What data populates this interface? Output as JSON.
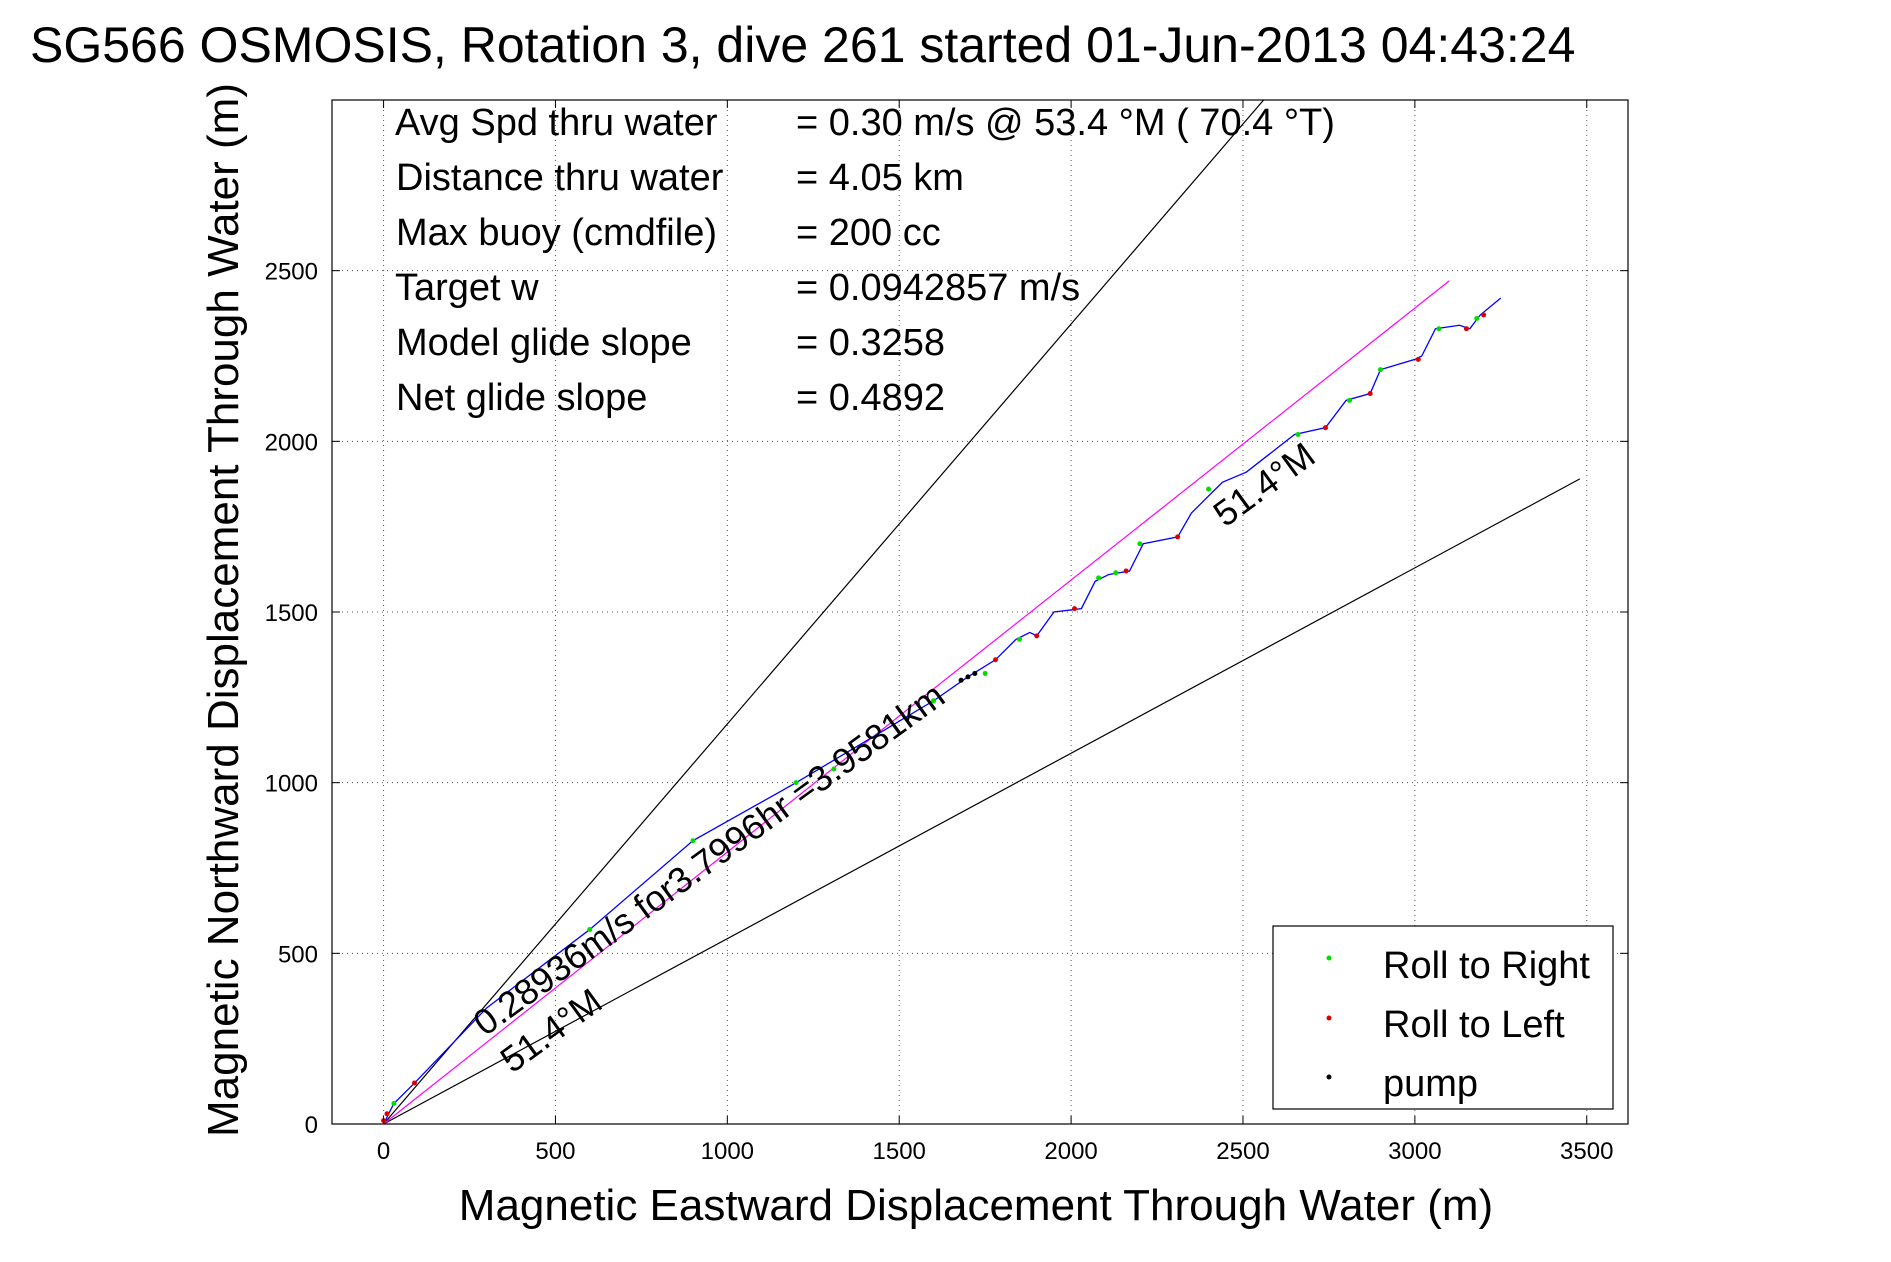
{
  "figure": {
    "title": "SG566 OSMOSIS, Rotation 3, dive 261 started 01-Jun-2013 04:43:24",
    "xlabel": "Magnetic Eastward Displacement Through Water (m)",
    "ylabel": "Magnetic Northward Displacement Through Water (m)"
  },
  "stats": [
    {
      "label": "Avg Spd thru water",
      "value": "=  0.30 m/s @  53.4 °M ( 70.4 °T)"
    },
    {
      "label": "Distance thru water",
      "value": "=  4.05 km"
    },
    {
      "label": "Max buoy (cmdfile)",
      "value": "= 200 cc"
    },
    {
      "label": "Target w",
      "value": "= 0.0942857 m/s"
    },
    {
      "label": "Model glide slope",
      "value": "= 0.3258"
    },
    {
      "label": "Net glide slope",
      "value": "= 0.4892"
    }
  ],
  "annotations": {
    "speed_text": "0.28936m/s for3.7996hr =3.9581km",
    "heading_lower": "51.4°M",
    "heading_upper": "51.4°M"
  },
  "legend": {
    "position": "bottom-right",
    "items": [
      {
        "label": "Roll to Right",
        "color": "#00dd00"
      },
      {
        "label": "Roll to Left",
        "color": "#dd0000"
      },
      {
        "label": "pump",
        "color": "#000000"
      }
    ]
  },
  "chart_data": {
    "type": "line",
    "xlim": [
      -150,
      3620
    ],
    "ylim": [
      0,
      3000
    ],
    "xticks": [
      0,
      500,
      1000,
      1500,
      2000,
      2500,
      3000,
      3500
    ],
    "yticks": [
      0,
      500,
      1000,
      1500,
      2000,
      2500
    ],
    "grid": true,
    "reference_lines": [
      {
        "name": "upper",
        "color": "#000000",
        "x": [
          0,
          2560
        ],
        "y": [
          0,
          3000
        ]
      },
      {
        "name": "lower",
        "color": "#000000",
        "x": [
          0,
          3480
        ],
        "y": [
          0,
          1890
        ]
      },
      {
        "name": "heading",
        "color": "#ff00ff",
        "x": [
          0,
          3100
        ],
        "y": [
          0,
          2470
        ]
      }
    ],
    "track": {
      "color": "#0000ff",
      "x": [
        0,
        30,
        90,
        300,
        600,
        900,
        1200,
        1500,
        1600,
        1700,
        1780,
        1840,
        1880,
        1900,
        1950,
        2030,
        2070,
        2110,
        2170,
        2210,
        2310,
        2350,
        2440,
        2510,
        2650,
        2740,
        2800,
        2870,
        2900,
        3000,
        3020,
        3060,
        3130,
        3160,
        3190,
        3250
      ],
      "y": [
        0,
        60,
        120,
        340,
        570,
        830,
        1000,
        1180,
        1240,
        1310,
        1360,
        1420,
        1440,
        1430,
        1500,
        1510,
        1590,
        1610,
        1620,
        1700,
        1720,
        1790,
        1880,
        1910,
        2020,
        2040,
        2120,
        2140,
        2210,
        2240,
        2250,
        2330,
        2340,
        2330,
        2370,
        2420
      ]
    },
    "roll_right": {
      "x": [
        30,
        600,
        900,
        1200,
        1310,
        1600,
        1750,
        1850,
        2080,
        2130,
        2200,
        2400,
        2660,
        2810,
        2900,
        3070,
        3180
      ],
      "y": [
        60,
        570,
        830,
        1000,
        1040,
        1240,
        1320,
        1420,
        1600,
        1615,
        1700,
        1860,
        2020,
        2120,
        2210,
        2330,
        2360
      ]
    },
    "roll_left": {
      "x": [
        0,
        10,
        90,
        1780,
        1900,
        2010,
        2160,
        2310,
        2740,
        2870,
        3010,
        3150,
        3200
      ],
      "y": [
        10,
        30,
        120,
        1360,
        1430,
        1510,
        1620,
        1720,
        2040,
        2140,
        2240,
        2330,
        2370
      ]
    },
    "pump": {
      "x": [
        1680,
        1700,
        1720
      ],
      "y": [
        1300,
        1310,
        1320
      ]
    }
  }
}
